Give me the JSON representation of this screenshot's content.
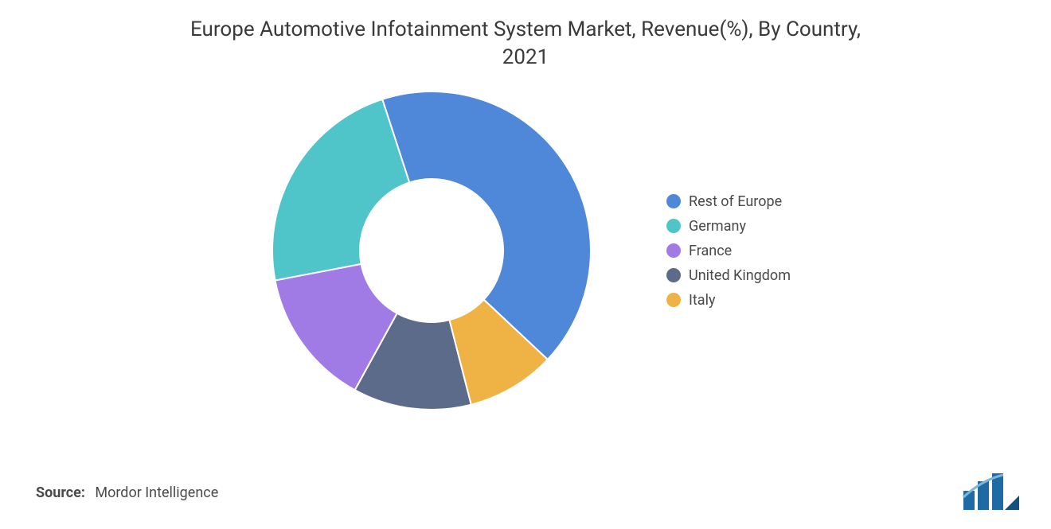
{
  "chart": {
    "type": "donut",
    "title_line1": "Europe Automotive Infotainment System Market, Revenue(%), By Country,",
    "title_line2": "2021",
    "title_fontsize": 26,
    "title_color": "#3a3a3a",
    "background_color": "#ffffff",
    "donut_outer_radius": 200,
    "donut_inner_radius": 90,
    "start_angle_deg": -108,
    "stroke_between_slices": "#ffffff",
    "stroke_width": 2,
    "slices": [
      {
        "label": "Rest of Europe",
        "value": 42,
        "color": "#4f88d8"
      },
      {
        "label": "Italy",
        "value": 9,
        "color": "#efb345"
      },
      {
        "label": "United Kingdom",
        "value": 12,
        "color": "#5c6b8a"
      },
      {
        "label": "France",
        "value": 14,
        "color": "#a07ae5"
      },
      {
        "label": "Germany",
        "value": 23,
        "color": "#4fc4c9"
      }
    ],
    "legend_items": [
      {
        "label": "Rest of Europe",
        "color": "#4f88d8"
      },
      {
        "label": "Germany",
        "color": "#4fc4c9"
      },
      {
        "label": "France",
        "color": "#a07ae5"
      },
      {
        "label": "United Kingdom",
        "color": "#5c6b8a"
      },
      {
        "label": "Italy",
        "color": "#efb345"
      }
    ],
    "legend_fontsize": 18,
    "legend_text_color": "#4a4a4a"
  },
  "source": {
    "label": "Source:",
    "value": "Mordor Intelligence",
    "fontsize": 18,
    "text_color": "#4a4a4a"
  },
  "logo": {
    "name": "mordor-intelligence-logo",
    "bar_colors": [
      "#1d6aa5",
      "#1d6aa5",
      "#1d6aa5"
    ],
    "accent_color": "#1d6aa5"
  }
}
